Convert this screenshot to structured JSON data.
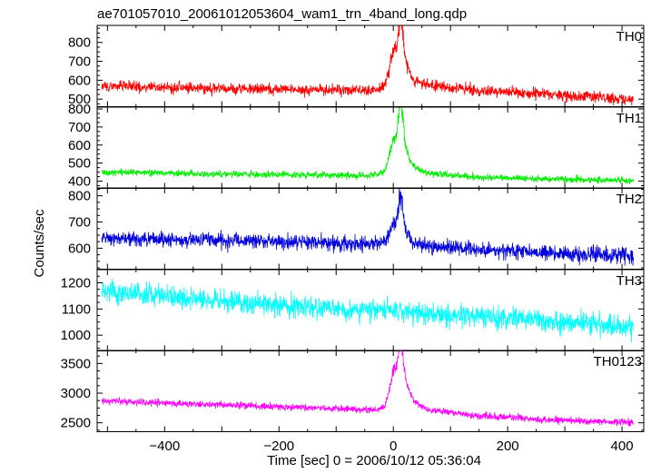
{
  "chart_data": {
    "type": "line",
    "title": "ae701057010_20061012053604_wam1_trn_4band_long.qdp",
    "xlabel": "Time [sec] 0 = 2006/10/12 05:36:04",
    "ylabel": "Counts/sec",
    "xlim": [
      -518,
      438
    ],
    "x_ticks": [
      -400,
      -200,
      0,
      200,
      400
    ],
    "grid": false,
    "panels": [
      {
        "name": "TH0",
        "color": "#ff0000",
        "ylim": [
          460,
          890
        ],
        "y_ticks": [
          500,
          600,
          700,
          800
        ],
        "baseline": [
          [
            -510,
            570
          ],
          [
            -300,
            555
          ],
          [
            -40,
            548
          ],
          [
            -15,
            565
          ],
          [
            0,
            640
          ],
          [
            20,
            610
          ],
          [
            60,
            575
          ],
          [
            150,
            545
          ],
          [
            300,
            520
          ],
          [
            420,
            500
          ]
        ],
        "noise": 28,
        "peaks": [
          [
            2,
            140,
            8
          ],
          [
            13,
            280,
            4
          ],
          [
            22,
            90,
            6
          ]
        ]
      },
      {
        "name": "TH1",
        "color": "#00ee00",
        "ylim": [
          360,
          810
        ],
        "y_ticks": [
          400,
          500,
          600,
          700,
          800
        ],
        "baseline": [
          [
            -510,
            450
          ],
          [
            -300,
            440
          ],
          [
            -40,
            430
          ],
          [
            -15,
            445
          ],
          [
            0,
            540
          ],
          [
            20,
            500
          ],
          [
            60,
            445
          ],
          [
            150,
            420
          ],
          [
            300,
            410
          ],
          [
            420,
            405
          ]
        ],
        "noise": 18,
        "peaks": [
          [
            2,
            110,
            8
          ],
          [
            13,
            340,
            4
          ],
          [
            22,
            80,
            6
          ]
        ]
      },
      {
        "name": "TH2",
        "color": "#0000dd",
        "ylim": [
          520,
          830
        ],
        "y_ticks": [
          600,
          700,
          800
        ],
        "baseline": [
          [
            -510,
            640
          ],
          [
            -300,
            630
          ],
          [
            -40,
            615
          ],
          [
            -15,
            620
          ],
          [
            0,
            640
          ],
          [
            20,
            625
          ],
          [
            60,
            610
          ],
          [
            150,
            595
          ],
          [
            300,
            580
          ],
          [
            420,
            570
          ]
        ],
        "noise": 28,
        "peaks": [
          [
            2,
            60,
            8
          ],
          [
            13,
            170,
            4
          ],
          [
            22,
            40,
            6
          ]
        ]
      },
      {
        "name": "TH3",
        "color": "#00ffff",
        "ylim": [
          940,
          1250
        ],
        "y_ticks": [
          1000,
          1100,
          1200
        ],
        "baseline": [
          [
            -510,
            1170
          ],
          [
            -300,
            1130
          ],
          [
            -100,
            1100
          ],
          [
            0,
            1090
          ],
          [
            150,
            1070
          ],
          [
            300,
            1050
          ],
          [
            420,
            1030
          ]
        ],
        "noise": 40,
        "peaks": []
      },
      {
        "name": "TH0123",
        "color": "#ff00ff",
        "ylim": [
          2350,
          3720
        ],
        "y_ticks": [
          2500,
          3000,
          3500
        ],
        "baseline": [
          [
            -510,
            2870
          ],
          [
            -300,
            2800
          ],
          [
            -40,
            2720
          ],
          [
            -15,
            2740
          ],
          [
            0,
            3050
          ],
          [
            20,
            2960
          ],
          [
            60,
            2720
          ],
          [
            150,
            2620
          ],
          [
            300,
            2540
          ],
          [
            420,
            2510
          ]
        ],
        "noise": 55,
        "peaks": [
          [
            2,
            380,
            8
          ],
          [
            13,
            900,
            4
          ],
          [
            22,
            250,
            6
          ]
        ]
      }
    ]
  }
}
